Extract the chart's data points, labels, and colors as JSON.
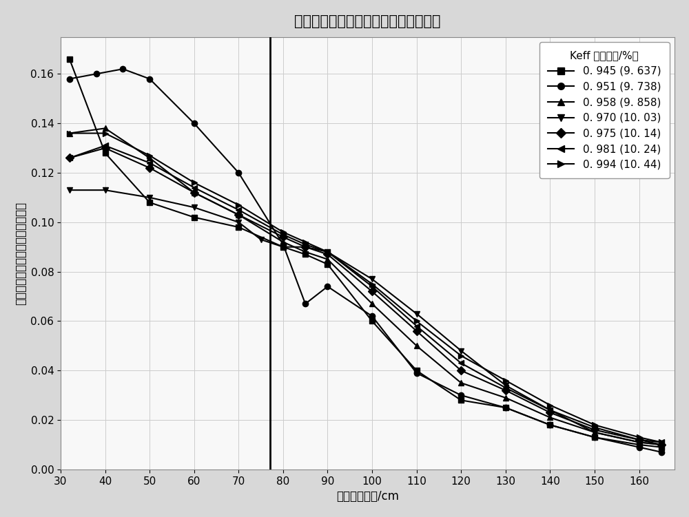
{
  "title": "归一化中子通量密度形状函数空间分布",
  "xlabel": "堆芯径向位置/cm",
  "ylabel": "归一化中子通量密度形玶函数数値",
  "xlim": [
    30,
    168
  ],
  "ylim": [
    0.0,
    0.175
  ],
  "xticks": [
    30,
    40,
    50,
    60,
    70,
    80,
    90,
    100,
    110,
    120,
    130,
    140,
    150,
    160
  ],
  "yticks": [
    0.0,
    0.02,
    0.04,
    0.06,
    0.08,
    0.1,
    0.12,
    0.14,
    0.16
  ],
  "vline_x": 77,
  "legend_title": "Keff（富集度/%）",
  "series": [
    {
      "label": "0. 945（9. 637）",
      "marker": "s",
      "x": [
        32,
        40,
        50,
        60,
        70,
        80,
        85,
        90,
        100,
        110,
        120,
        130,
        140,
        150,
        160,
        165
      ],
      "y": [
        0.166,
        0.128,
        0.108,
        0.102,
        0.098,
        0.09,
        0.087,
        0.083,
        0.06,
        0.04,
        0.028,
        0.025,
        0.018,
        0.013,
        0.01,
        0.009
      ]
    },
    {
      "label": "0. 951（9. 738）",
      "marker": "o",
      "x": [
        32,
        38,
        44,
        50,
        60,
        70,
        80,
        85,
        90,
        100,
        110,
        120,
        130,
        140,
        150,
        160,
        165
      ],
      "y": [
        0.158,
        0.16,
        0.162,
        0.158,
        0.14,
        0.12,
        0.091,
        0.067,
        0.074,
        0.062,
        0.039,
        0.03,
        0.025,
        0.018,
        0.013,
        0.009,
        0.007
      ]
    },
    {
      "label": "0. 958（9. 858）",
      "marker": "^",
      "x": [
        32,
        40,
        50,
        60,
        70,
        80,
        85,
        90,
        100,
        110,
        120,
        130,
        140,
        150,
        160,
        165
      ],
      "y": [
        0.136,
        0.138,
        0.126,
        0.112,
        0.103,
        0.092,
        0.088,
        0.085,
        0.067,
        0.05,
        0.035,
        0.029,
        0.021,
        0.015,
        0.011,
        0.01
      ]
    },
    {
      "label": "0. 970（10. 03）",
      "marker": "v",
      "x": [
        32,
        40,
        50,
        60,
        70,
        75,
        80,
        85,
        90,
        100,
        110,
        120,
        130,
        140,
        150,
        160,
        165
      ],
      "y": [
        0.113,
        0.113,
        0.11,
        0.106,
        0.1,
        0.093,
        0.09,
        0.09,
        0.088,
        0.077,
        0.063,
        0.048,
        0.034,
        0.024,
        0.015,
        0.011,
        0.01
      ]
    },
    {
      "label": "0. 975（10. 14）",
      "marker": "D",
      "x": [
        32,
        40,
        50,
        60,
        70,
        80,
        85,
        90,
        100,
        110,
        120,
        130,
        140,
        150,
        160,
        165
      ],
      "y": [
        0.126,
        0.13,
        0.122,
        0.112,
        0.103,
        0.094,
        0.09,
        0.087,
        0.072,
        0.056,
        0.04,
        0.032,
        0.023,
        0.016,
        0.012,
        0.01
      ]
    },
    {
      "label": "0. 981（10. 24）",
      "marker": "<",
      "x": [
        32,
        40,
        50,
        60,
        70,
        80,
        85,
        90,
        100,
        110,
        120,
        130,
        140,
        150,
        160,
        165
      ],
      "y": [
        0.126,
        0.131,
        0.124,
        0.114,
        0.105,
        0.095,
        0.091,
        0.088,
        0.074,
        0.058,
        0.043,
        0.033,
        0.024,
        0.017,
        0.012,
        0.011
      ]
    },
    {
      "label": "0. 994（10. 44）",
      "marker": ">",
      "x": [
        32,
        40,
        50,
        60,
        70,
        80,
        85,
        90,
        100,
        110,
        120,
        130,
        140,
        150,
        160,
        165
      ],
      "y": [
        0.136,
        0.136,
        0.127,
        0.116,
        0.107,
        0.096,
        0.092,
        0.088,
        0.075,
        0.06,
        0.046,
        0.036,
        0.026,
        0.018,
        0.013,
        0.011
      ]
    }
  ],
  "background_color": "#f5f5f5",
  "title_fontsize": 15,
  "label_fontsize": 12,
  "tick_fontsize": 11,
  "legend_fontsize": 11
}
